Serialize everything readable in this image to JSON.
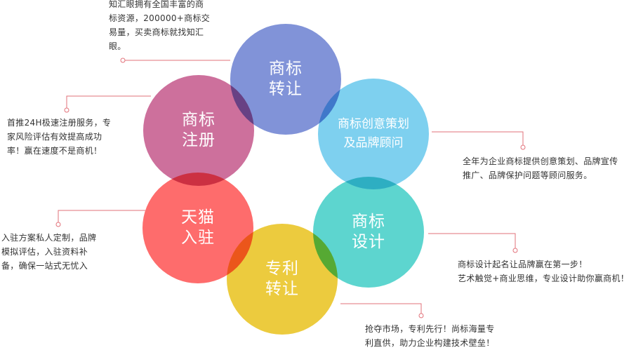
{
  "colors": {
    "trademark_transfer": "#8193d8",
    "trademark_register": "#cd709c",
    "creative_planning": "#7ed0ef",
    "tmall_entry": "#fe6c6c",
    "trademark_design": "#5dd5cf",
    "patent_transfer": "#eccb3e",
    "connector": "#e2727a"
  },
  "circles": {
    "trademark_transfer": "商标\n转让",
    "trademark_register": "商标\n注册",
    "creative_planning": "商标创意策划\n及品牌顾问",
    "tmall_entry": "天猫\n入驻",
    "trademark_design": "商标\n设计",
    "patent_transfer": "专利\n转让"
  },
  "descriptions": {
    "trademark_transfer": "知汇眼拥有全国丰富的商\n标资源，200000+商标交\n易量，买卖商标就找知汇\n眼。",
    "trademark_register": "首推24H极速注册服务，专\n家风险评估有效提高成功\n率！赢在速度不是商机！",
    "creative_planning": "全年为企业商标提供创意策划、品牌宣传\n推广、品牌保护问题等顾问服务。",
    "tmall_entry": "入驻方案私人定制，品牌\n模拟评估，入驻资料补\n备，确保一站式无忧入",
    "trademark_design": "商标设计起名让品牌赢在第一步！\n艺术触觉+商业思维，专业设计助你赢商机！",
    "patent_transfer": "抢夺市场，专利先行！尚标海量专\n利直供，助力企业构建技术壁垒！"
  }
}
